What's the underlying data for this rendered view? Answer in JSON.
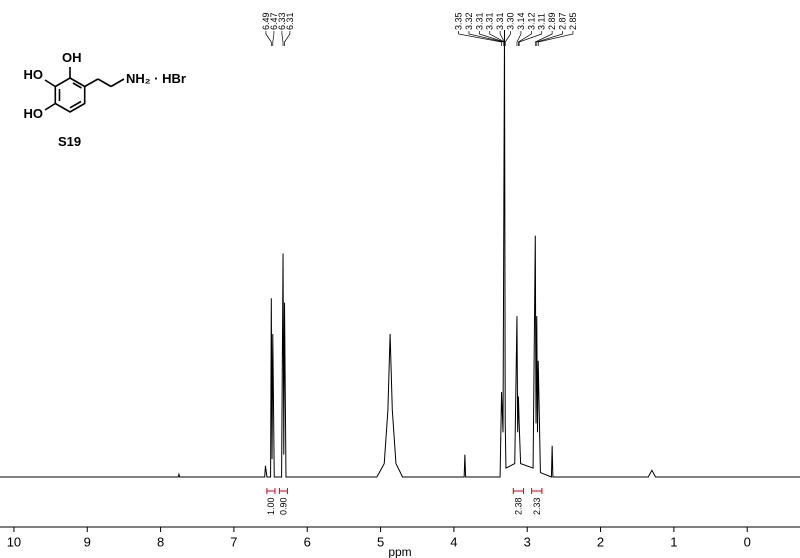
{
  "chart_data": {
    "type": "line",
    "x_label": "ppm",
    "xlim": [
      10.19,
      -0.72
    ],
    "ylim": [
      0,
      100
    ],
    "xticks": [
      10,
      9,
      8,
      7,
      6,
      5,
      4,
      3,
      2,
      1,
      0
    ],
    "color": "#000000",
    "x": [
      10.19,
      7.76,
      7.75,
      7.74,
      6.58,
      6.57,
      6.55,
      6.5,
      6.49,
      6.48,
      6.47,
      6.45,
      6.35,
      6.33,
      6.32,
      6.31,
      6.29,
      5.05,
      4.95,
      4.9,
      4.87,
      4.84,
      4.79,
      4.7,
      3.86,
      3.85,
      3.84,
      3.37,
      3.35,
      3.33,
      3.31,
      3.3,
      3.29,
      3.17,
      3.14,
      3.13,
      3.12,
      3.11,
      3.09,
      2.92,
      2.89,
      2.88,
      2.87,
      2.86,
      2.85,
      2.82,
      2.67,
      2.66,
      2.65,
      1.35,
      1.3,
      1.25,
      -0.72
    ],
    "values": [
      0,
      0,
      0.6,
      0,
      0,
      2.5,
      0,
      0,
      40,
      4,
      32,
      0,
      0,
      50,
      5,
      39,
      0,
      0,
      3,
      15,
      32,
      15,
      3,
      0,
      0,
      5,
      0,
      0,
      19,
      10,
      100,
      12,
      2,
      3,
      36,
      10,
      18,
      12,
      3,
      2,
      54,
      12,
      36,
      10,
      26,
      1,
      0,
      7,
      0,
      0,
      1.5,
      0,
      0
    ],
    "peak_labels": [
      6.49,
      6.47,
      6.33,
      6.31,
      3.35,
      3.32,
      3.31,
      3.31,
      3.31,
      {
        "value": 3.3,
        "label": "3.30"
      },
      3.14,
      3.12,
      3.11,
      2.89,
      2.87,
      2.85
    ],
    "integrals": [
      {
        "value": 1,
        "label": "1.00",
        "range": [
          6.55,
          6.44
        ]
      },
      {
        "value": 0.9,
        "label": "0.90",
        "range": [
          6.38,
          6.27
        ]
      },
      {
        "value": 2.38,
        "label": "2.38",
        "range": [
          3.19,
          3.05
        ]
      },
      {
        "value": 2.33,
        "label": "2.33",
        "range": [
          2.94,
          2.8
        ]
      }
    ],
    "structure": {
      "oh_top": "OH",
      "ho_upper": "HO",
      "ho_lower": "HO",
      "amine": "NH₂ · HBr",
      "compound": "S19"
    }
  }
}
